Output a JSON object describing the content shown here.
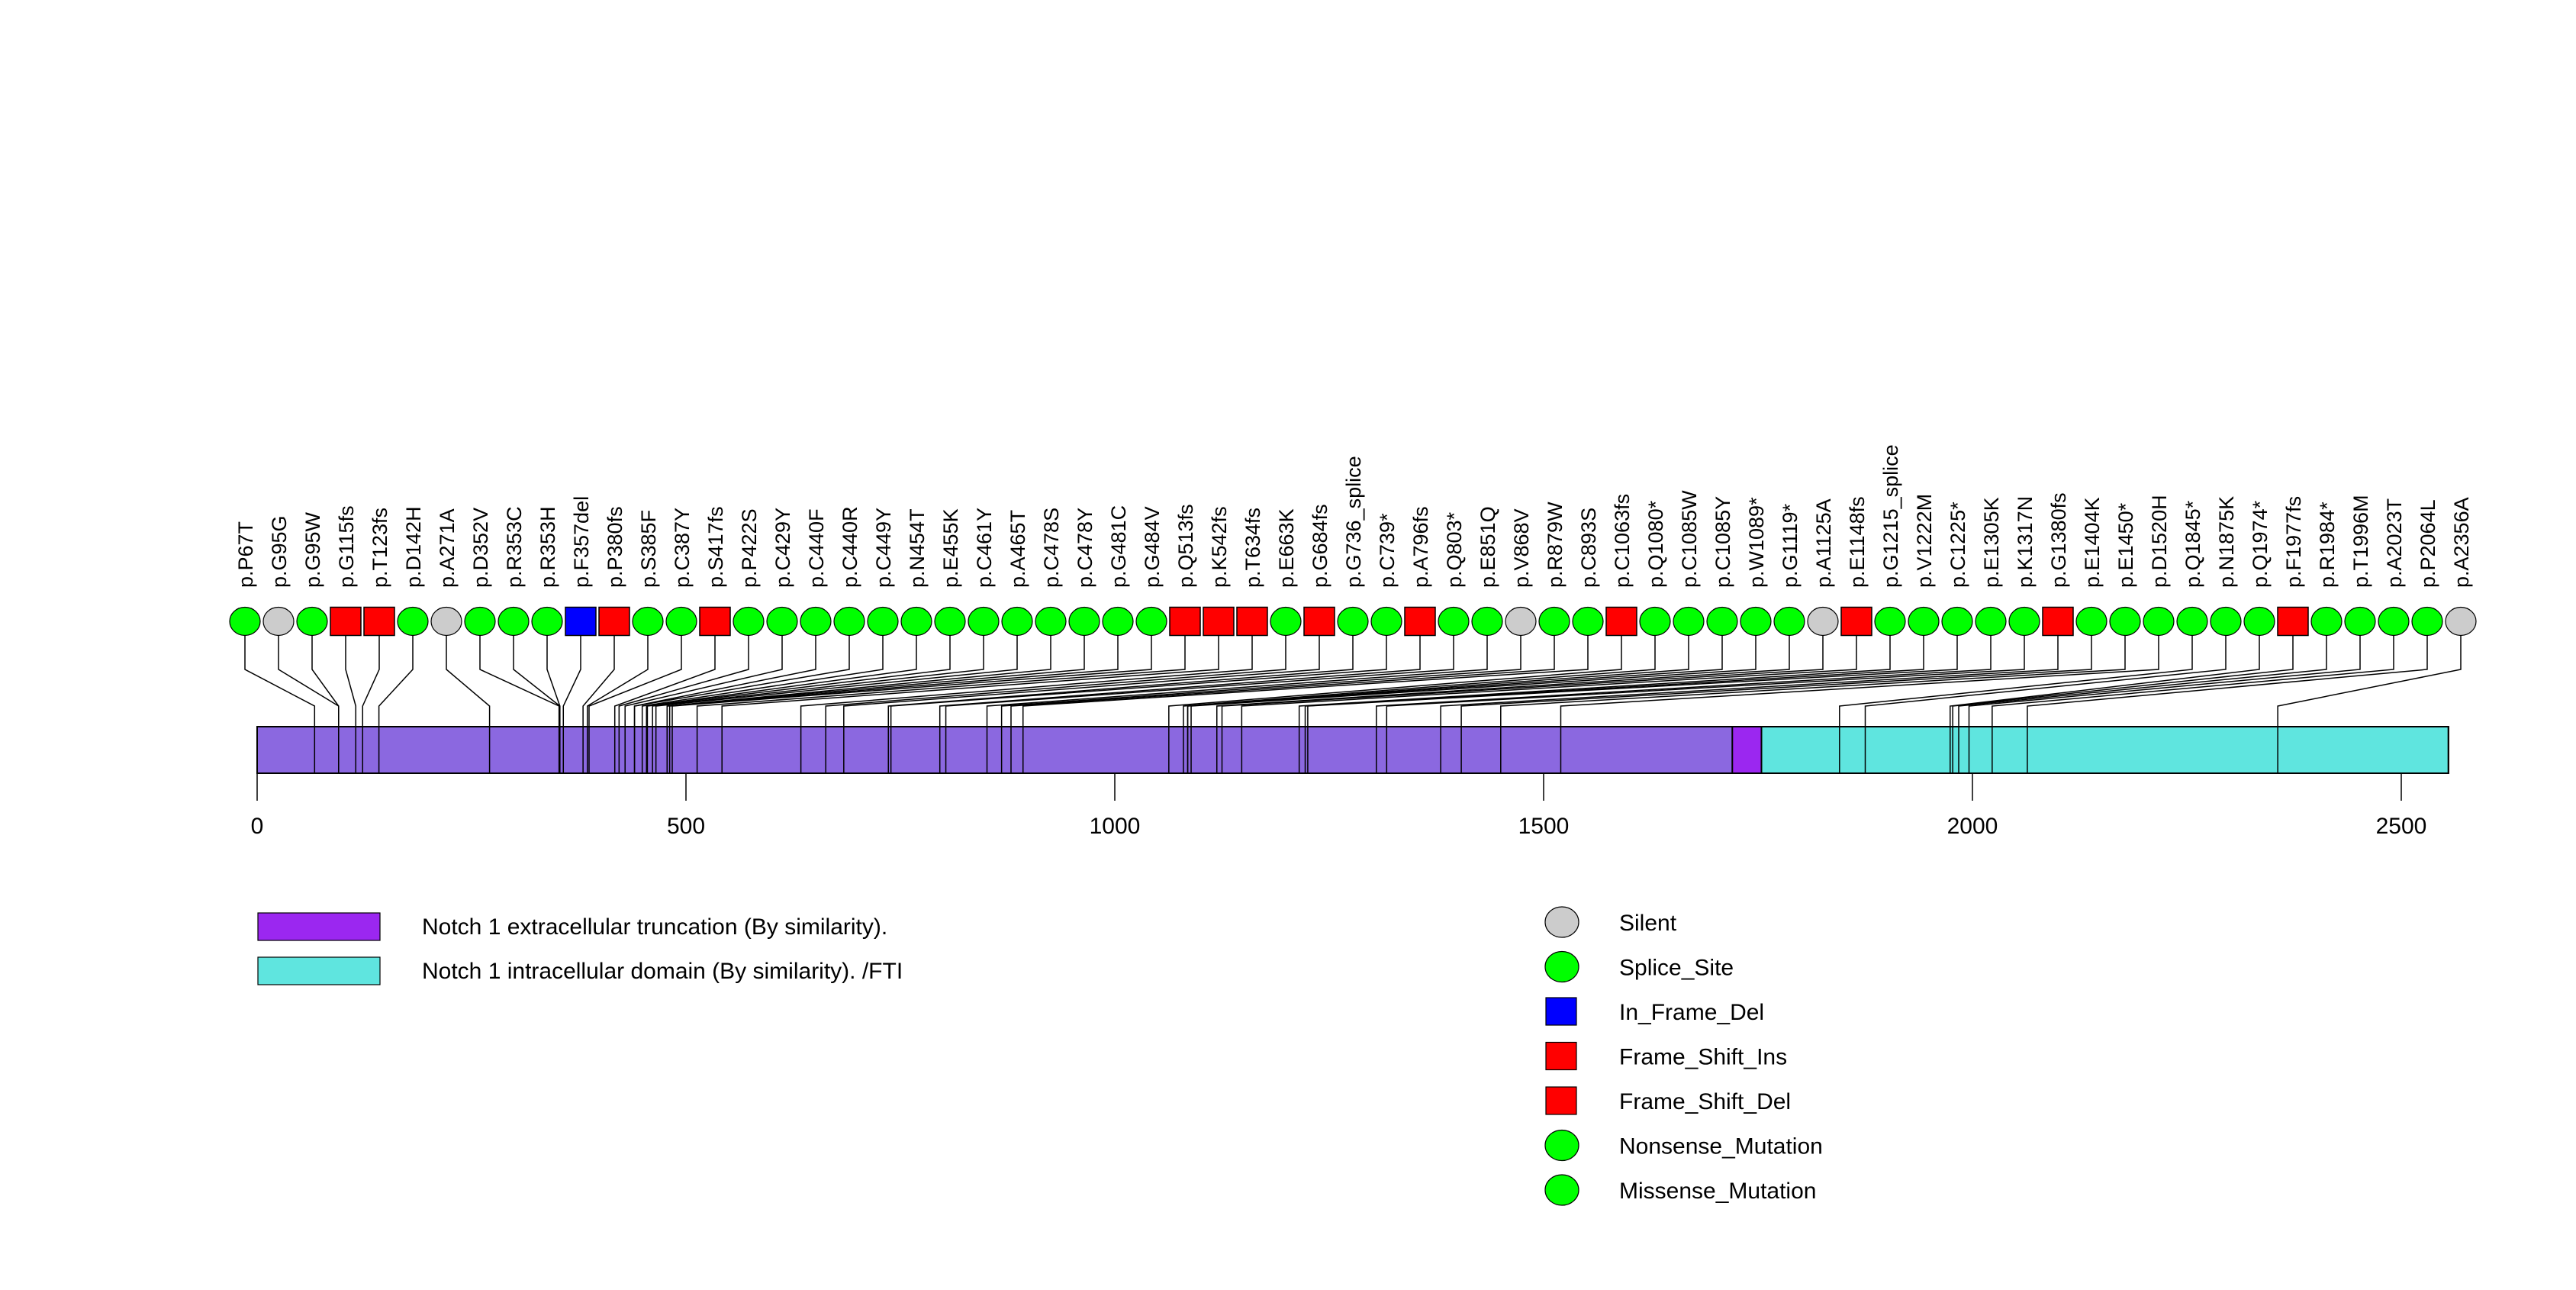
{
  "chart_data": {
    "type": "lollipop",
    "title": "",
    "xlabel": "",
    "ylabel": "",
    "protein_length": 2555,
    "xlim": [
      0,
      2555
    ],
    "x_ticks": [
      0,
      500,
      1000,
      1500,
      2000,
      2500
    ],
    "x_tick_labels": [
      "0",
      "500",
      "1000",
      "1500",
      "2000",
      "2500"
    ],
    "backbone_color": "#8B68E0",
    "domains": [
      {
        "name": "Notch 1 extracellular truncation (By similarity).",
        "start": 1720,
        "end": 1754,
        "color": "#9B27F0"
      },
      {
        "name": "Notch 1 intracellular domain (By similarity). /FTI",
        "start": 1754,
        "end": 2555,
        "color": "#5FE5DF"
      }
    ],
    "mutation_types": [
      {
        "name": "Silent",
        "shape": "circle",
        "color": "#CCCCCC"
      },
      {
        "name": "Splice_Site",
        "shape": "circle",
        "color": "#00FF00"
      },
      {
        "name": "In_Frame_Del",
        "shape": "square",
        "color": "#0000FF"
      },
      {
        "name": "Frame_Shift_Ins",
        "shape": "square",
        "color": "#FF0000"
      },
      {
        "name": "Frame_Shift_Del",
        "shape": "square",
        "color": "#FF0000"
      },
      {
        "name": "Nonsense_Mutation",
        "shape": "circle",
        "color": "#00FF00"
      },
      {
        "name": "Missense_Mutation",
        "shape": "circle",
        "color": "#00FF00"
      }
    ],
    "mutations": [
      {
        "label": "p.P67T",
        "position": 67,
        "type": "Missense_Mutation"
      },
      {
        "label": "p.G95G",
        "position": 95,
        "type": "Silent"
      },
      {
        "label": "p.G95W",
        "position": 95,
        "type": "Missense_Mutation"
      },
      {
        "label": "p.G115fs",
        "position": 115,
        "type": "Frame_Shift_Del"
      },
      {
        "label": "p.T123fs",
        "position": 123,
        "type": "Frame_Shift_Del"
      },
      {
        "label": "p.D142H",
        "position": 142,
        "type": "Missense_Mutation"
      },
      {
        "label": "p.A271A",
        "position": 271,
        "type": "Silent"
      },
      {
        "label": "p.D352V",
        "position": 352,
        "type": "Missense_Mutation"
      },
      {
        "label": "p.R353C",
        "position": 353,
        "type": "Missense_Mutation"
      },
      {
        "label": "p.R353H",
        "position": 353,
        "type": "Missense_Mutation"
      },
      {
        "label": "p.F357del",
        "position": 357,
        "type": "In_Frame_Del"
      },
      {
        "label": "p.P380fs",
        "position": 380,
        "type": "Frame_Shift_Del"
      },
      {
        "label": "p.S385F",
        "position": 385,
        "type": "Missense_Mutation"
      },
      {
        "label": "p.C387Y",
        "position": 387,
        "type": "Missense_Mutation"
      },
      {
        "label": "p.S417fs",
        "position": 417,
        "type": "Frame_Shift_Del"
      },
      {
        "label": "p.P422S",
        "position": 422,
        "type": "Missense_Mutation"
      },
      {
        "label": "p.C429Y",
        "position": 429,
        "type": "Missense_Mutation"
      },
      {
        "label": "p.C440F",
        "position": 440,
        "type": "Missense_Mutation"
      },
      {
        "label": "p.C440R",
        "position": 440,
        "type": "Missense_Mutation"
      },
      {
        "label": "p.C449Y",
        "position": 449,
        "type": "Missense_Mutation"
      },
      {
        "label": "p.N454T",
        "position": 454,
        "type": "Missense_Mutation"
      },
      {
        "label": "p.E455K",
        "position": 455,
        "type": "Missense_Mutation"
      },
      {
        "label": "p.C461Y",
        "position": 461,
        "type": "Missense_Mutation"
      },
      {
        "label": "p.A465T",
        "position": 465,
        "type": "Missense_Mutation"
      },
      {
        "label": "p.C478S",
        "position": 478,
        "type": "Missense_Mutation"
      },
      {
        "label": "p.C478Y",
        "position": 478,
        "type": "Missense_Mutation"
      },
      {
        "label": "p.G481C",
        "position": 481,
        "type": "Missense_Mutation"
      },
      {
        "label": "p.G484V",
        "position": 484,
        "type": "Missense_Mutation"
      },
      {
        "label": "p.Q513fs",
        "position": 513,
        "type": "Frame_Shift_Del"
      },
      {
        "label": "p.K542fs",
        "position": 542,
        "type": "Frame_Shift_Del"
      },
      {
        "label": "p.T634fs",
        "position": 634,
        "type": "Frame_Shift_Del"
      },
      {
        "label": "p.E663K",
        "position": 663,
        "type": "Missense_Mutation"
      },
      {
        "label": "p.G684fs",
        "position": 684,
        "type": "Frame_Shift_Del"
      },
      {
        "label": "p.G736_splice",
        "position": 736,
        "type": "Splice_Site"
      },
      {
        "label": "p.C739*",
        "position": 739,
        "type": "Nonsense_Mutation"
      },
      {
        "label": "p.A796fs",
        "position": 796,
        "type": "Frame_Shift_Del"
      },
      {
        "label": "p.Q803*",
        "position": 803,
        "type": "Nonsense_Mutation"
      },
      {
        "label": "p.E851Q",
        "position": 851,
        "type": "Missense_Mutation"
      },
      {
        "label": "p.V868V",
        "position": 868,
        "type": "Silent"
      },
      {
        "label": "p.R879W",
        "position": 879,
        "type": "Missense_Mutation"
      },
      {
        "label": "p.C893S",
        "position": 893,
        "type": "Missense_Mutation"
      },
      {
        "label": "p.C1063fs",
        "position": 1063,
        "type": "Frame_Shift_Del"
      },
      {
        "label": "p.Q1080*",
        "position": 1080,
        "type": "Nonsense_Mutation"
      },
      {
        "label": "p.C1085W",
        "position": 1085,
        "type": "Missense_Mutation"
      },
      {
        "label": "p.C1085Y",
        "position": 1085,
        "type": "Missense_Mutation"
      },
      {
        "label": "p.W1089*",
        "position": 1089,
        "type": "Nonsense_Mutation"
      },
      {
        "label": "p.G1119*",
        "position": 1119,
        "type": "Nonsense_Mutation"
      },
      {
        "label": "p.A1125A",
        "position": 1125,
        "type": "Silent"
      },
      {
        "label": "p.E1148fs",
        "position": 1148,
        "type": "Frame_Shift_Del"
      },
      {
        "label": "p.G1215_splice",
        "position": 1215,
        "type": "Splice_Site"
      },
      {
        "label": "p.V1222M",
        "position": 1222,
        "type": "Missense_Mutation"
      },
      {
        "label": "p.C1225*",
        "position": 1225,
        "type": "Nonsense_Mutation"
      },
      {
        "label": "p.E1305K",
        "position": 1305,
        "type": "Missense_Mutation"
      },
      {
        "label": "p.K1317N",
        "position": 1317,
        "type": "Missense_Mutation"
      },
      {
        "label": "p.G1380fs",
        "position": 1380,
        "type": "Frame_Shift_Del"
      },
      {
        "label": "p.E1404K",
        "position": 1404,
        "type": "Missense_Mutation"
      },
      {
        "label": "p.E1450*",
        "position": 1450,
        "type": "Nonsense_Mutation"
      },
      {
        "label": "p.D1520H",
        "position": 1520,
        "type": "Missense_Mutation"
      },
      {
        "label": "p.Q1845*",
        "position": 1845,
        "type": "Nonsense_Mutation"
      },
      {
        "label": "p.N1875K",
        "position": 1875,
        "type": "Missense_Mutation"
      },
      {
        "label": "p.Q1974*",
        "position": 1974,
        "type": "Nonsense_Mutation"
      },
      {
        "label": "p.F1977fs",
        "position": 1977,
        "type": "Frame_Shift_Del"
      },
      {
        "label": "p.R1984*",
        "position": 1984,
        "type": "Nonsense_Mutation"
      },
      {
        "label": "p.T1996M",
        "position": 1996,
        "type": "Missense_Mutation"
      },
      {
        "label": "p.A2023T",
        "position": 2023,
        "type": "Missense_Mutation"
      },
      {
        "label": "p.P2064L",
        "position": 2064,
        "type": "Missense_Mutation"
      },
      {
        "label": "p.A2356A",
        "position": 2356,
        "type": "Silent"
      }
    ],
    "legend_domains_placement": "bottom-left",
    "legend_types_placement": "bottom-right",
    "grid": false
  }
}
